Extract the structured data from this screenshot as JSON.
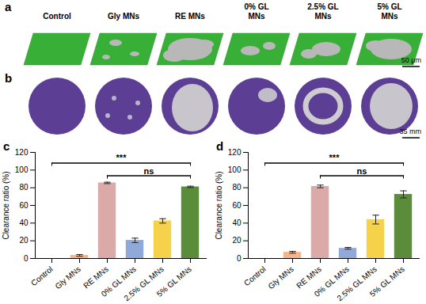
{
  "image_panels": [
    {
      "label": "a",
      "samples": [
        "Control",
        "Gly MNs",
        "RE MNs",
        "0% GL MNs",
        "2.5% GL MNs",
        "5% GL MNs"
      ],
      "scale_bar": "50 μm"
    },
    {
      "label": "b",
      "scale_bar": "35 mm"
    }
  ],
  "chart_data": [
    {
      "type": "bar",
      "title": "c",
      "categories": [
        "Control",
        "Gly MNs",
        "RE MNs",
        "0% GL MNs",
        "2.5% GL MNs",
        "5% GL MNs"
      ],
      "values": [
        0,
        3.5,
        85.5,
        20.5,
        42.5,
        81
      ],
      "errors": [
        0,
        1,
        0.8,
        2.5,
        2.5,
        0.8
      ],
      "colors": [
        "#999999",
        "#f6b48a",
        "#dba9a8",
        "#8fa9d9",
        "#f5d24a",
        "#5b8c3a"
      ],
      "y_label": "Clearance ratio (%)",
      "ylim": [
        0,
        120
      ],
      "yticks": [
        0,
        20,
        40,
        60,
        80,
        100,
        120
      ],
      "annotations": [
        {
          "label": "***",
          "from": "Control",
          "to": "5% GL MNs"
        },
        {
          "label": "ns",
          "from": "RE MNs",
          "to": "5% GL MNs"
        }
      ]
    },
    {
      "type": "bar",
      "title": "d",
      "categories": [
        "Control",
        "Gly MNs",
        "RE MNs",
        "0% GL MNs",
        "2.5% GL MNs",
        "5% GL MNs"
      ],
      "values": [
        0,
        7,
        81.5,
        11.5,
        44,
        72.5
      ],
      "errors": [
        0,
        1,
        1.5,
        1,
        5,
        4
      ],
      "colors": [
        "#999999",
        "#f6b48a",
        "#dba9a8",
        "#8fa9d9",
        "#f5d24a",
        "#5b8c3a"
      ],
      "y_label": "Clearance ratio (%)",
      "ylim": [
        0,
        120
      ],
      "yticks": [
        0,
        20,
        40,
        60,
        80,
        100,
        120
      ],
      "annotations": [
        {
          "label": "***",
          "from": "Control",
          "to": "5% GL MNs"
        },
        {
          "label": "ns",
          "from": "RE MNs",
          "to": "5% GL MNs"
        }
      ]
    }
  ]
}
